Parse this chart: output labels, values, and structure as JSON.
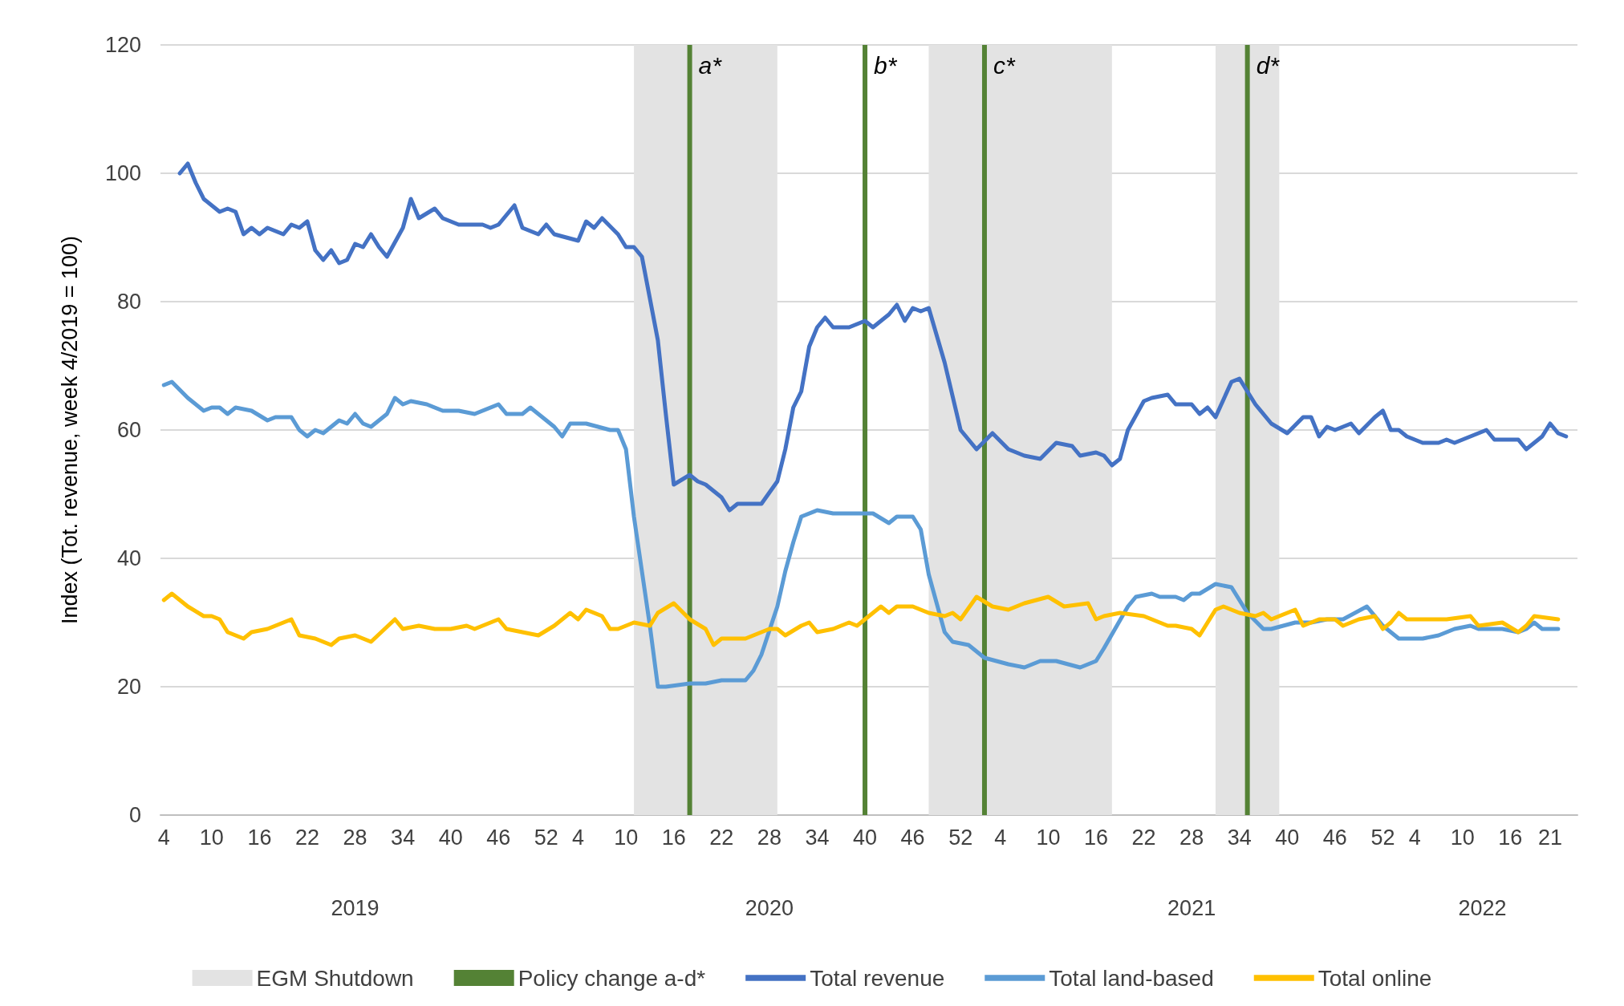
{
  "chart_data": {
    "type": "line",
    "ylabel": "Index (Tot. revenue, week 4/2019 = 100)",
    "xlim": [
      "2019-01-18",
      "2022-06-16"
    ],
    "xticks": [
      {
        "value": "2019-01-21",
        "label": "4"
      },
      {
        "value": "2019-03-04",
        "label": "10"
      },
      {
        "value": "2019-04-15",
        "label": "16"
      },
      {
        "value": "2019-05-27",
        "label": "22"
      },
      {
        "value": "2019-07-08",
        "label": "28"
      },
      {
        "value": "2019-08-19",
        "label": "34"
      },
      {
        "value": "2019-09-30",
        "label": "40"
      },
      {
        "value": "2019-11-11",
        "label": "46"
      },
      {
        "value": "2019-12-23",
        "label": "52"
      },
      {
        "value": "2020-01-20",
        "label": "4"
      },
      {
        "value": "2020-03-02",
        "label": "10"
      },
      {
        "value": "2020-04-13",
        "label": "16"
      },
      {
        "value": "2020-05-25",
        "label": "22"
      },
      {
        "value": "2020-07-06",
        "label": "28"
      },
      {
        "value": "2020-08-17",
        "label": "34"
      },
      {
        "value": "2020-09-28",
        "label": "40"
      },
      {
        "value": "2020-11-09",
        "label": "46"
      },
      {
        "value": "2020-12-21",
        "label": "52"
      },
      {
        "value": "2021-01-25",
        "label": "4"
      },
      {
        "value": "2021-03-08",
        "label": "10"
      },
      {
        "value": "2021-04-19",
        "label": "16"
      },
      {
        "value": "2021-05-31",
        "label": "22"
      },
      {
        "value": "2021-07-12",
        "label": "28"
      },
      {
        "value": "2021-08-23",
        "label": "34"
      },
      {
        "value": "2021-10-04",
        "label": "40"
      },
      {
        "value": "2021-11-15",
        "label": "46"
      },
      {
        "value": "2021-12-27",
        "label": "52"
      },
      {
        "value": "2022-01-24",
        "label": "4"
      },
      {
        "value": "2022-03-07",
        "label": "10"
      },
      {
        "value": "2022-04-18",
        "label": "16"
      },
      {
        "value": "2022-05-23",
        "label": "21"
      }
    ],
    "ylim": [
      0,
      120
    ],
    "yticks": [
      0,
      20,
      40,
      60,
      80,
      100,
      120
    ],
    "grid": "y",
    "legend": "bottom",
    "marker": "none",
    "line_style": "solid",
    "bands": [
      {
        "axis": "x",
        "from": "2020-03-09",
        "to": "2020-07-13",
        "label": "EGM Shutdown",
        "color": "#e3e3e3"
      },
      {
        "axis": "x",
        "from": "2020-11-23",
        "to": "2021-05-03",
        "color": "#e3e3e3"
      },
      {
        "axis": "x",
        "from": "2021-08-02",
        "to": "2021-09-27",
        "color": "#e3e3e3"
      }
    ],
    "annotations": [
      "2019",
      "2020",
      "2021",
      "2022"
    ],
    "series": [
      {
        "name": "Policy change a-d*",
        "type": "bar",
        "color": "#548235",
        "x": [
          "2020-04-27",
          "2020-09-28",
          "2021-01-11",
          "2021-08-30"
        ],
        "values": [
          120,
          120,
          120,
          120
        ],
        "value_labels": [
          "a*",
          "b*",
          "c*",
          "d*"
        ]
      },
      {
        "name": "Total revenue",
        "color": "#4472c4",
        "x": [
          "2019-02-04",
          "2019-02-11",
          "2019-02-18",
          "2019-02-25",
          "2019-03-11",
          "2019-03-18",
          "2019-03-25",
          "2019-04-01",
          "2019-04-08",
          "2019-04-15",
          "2019-04-22",
          "2019-05-06",
          "2019-05-13",
          "2019-05-20",
          "2019-05-27",
          "2019-06-03",
          "2019-06-10",
          "2019-06-17",
          "2019-06-24",
          "2019-07-01",
          "2019-07-08",
          "2019-07-15",
          "2019-07-22",
          "2019-07-29",
          "2019-08-05",
          "2019-08-19",
          "2019-08-26",
          "2019-09-02",
          "2019-09-16",
          "2019-09-23",
          "2019-10-07",
          "2019-10-28",
          "2019-11-04",
          "2019-11-11",
          "2019-11-25",
          "2019-12-02",
          "2019-12-16",
          "2019-12-23",
          "2019-12-30",
          "2020-01-20",
          "2020-01-27",
          "2020-02-03",
          "2020-02-10",
          "2020-02-24",
          "2020-03-02",
          "2020-03-09",
          "2020-03-16",
          "2020-03-30",
          "2020-04-06",
          "2020-04-13",
          "2020-04-27",
          "2020-05-04",
          "2020-05-11",
          "2020-05-25",
          "2020-06-01",
          "2020-06-08",
          "2020-06-15",
          "2020-06-29",
          "2020-07-13",
          "2020-07-20",
          "2020-07-27",
          "2020-08-03",
          "2020-08-10",
          "2020-08-17",
          "2020-08-24",
          "2020-08-31",
          "2020-09-14",
          "2020-09-28",
          "2020-10-05",
          "2020-10-19",
          "2020-10-26",
          "2020-11-02",
          "2020-11-09",
          "2020-11-16",
          "2020-11-23",
          "2020-12-07",
          "2020-12-21",
          "2021-01-04",
          "2021-01-18",
          "2021-02-01",
          "2021-02-15",
          "2021-03-01",
          "2021-03-15",
          "2021-03-29",
          "2021-04-05",
          "2021-04-19",
          "2021-04-26",
          "2021-05-03",
          "2021-05-10",
          "2021-05-17",
          "2021-05-31",
          "2021-06-07",
          "2021-06-21",
          "2021-06-28",
          "2021-07-12",
          "2021-07-19",
          "2021-07-26",
          "2021-08-02",
          "2021-08-16",
          "2021-08-23",
          "2021-09-06",
          "2021-09-20",
          "2021-10-04",
          "2021-10-18",
          "2021-10-25",
          "2021-11-01",
          "2021-11-08",
          "2021-11-15",
          "2021-11-29",
          "2021-12-06",
          "2021-12-20",
          "2021-12-27",
          "2022-01-03",
          "2022-01-10",
          "2022-01-17",
          "2022-01-31",
          "2022-02-14",
          "2022-02-21",
          "2022-02-28",
          "2022-03-21",
          "2022-03-28",
          "2022-04-04",
          "2022-04-25",
          "2022-05-02",
          "2022-05-16",
          "2022-05-23",
          "2022-05-30",
          "2022-06-06"
        ],
        "values": [
          100,
          101.5,
          98.5,
          96,
          94,
          94.5,
          94,
          90.5,
          91.5,
          90.5,
          91.5,
          90.5,
          92,
          91.5,
          92.5,
          88,
          86.5,
          88,
          86,
          86.5,
          89,
          88.5,
          90.5,
          88.5,
          87,
          91.5,
          96,
          93,
          94.5,
          93,
          92,
          92,
          91.5,
          92,
          95,
          91.5,
          90.5,
          92,
          90.5,
          89.5,
          92.5,
          91.5,
          93,
          90.5,
          88.5,
          88.5,
          87,
          74,
          62.5,
          51.5,
          53,
          52,
          51.5,
          49.5,
          47.5,
          48.5,
          48.5,
          48.5,
          52,
          57,
          63.5,
          66,
          73,
          76,
          77.5,
          76,
          76,
          77,
          76,
          78,
          79.5,
          77,
          79,
          78.5,
          79,
          70.5,
          60,
          57,
          59.5,
          57,
          56,
          55.5,
          58,
          57.5,
          56,
          56.5,
          56,
          54.5,
          55.5,
          60,
          64.5,
          65,
          65.5,
          64,
          64,
          62.5,
          63.5,
          62,
          67.5,
          68,
          64,
          61,
          59.5,
          62,
          62,
          59,
          60.5,
          60,
          61,
          59.5,
          62,
          63,
          60,
          60,
          59,
          58,
          58,
          58.5,
          58,
          59.5,
          60,
          58.5,
          58.5,
          57,
          59,
          61,
          59.5,
          59
        ]
      },
      {
        "name": "Total land-based",
        "color": "#5b9bd5",
        "x": [
          "2019-01-21",
          "2019-01-28",
          "2019-02-11",
          "2019-02-25",
          "2019-03-04",
          "2019-03-11",
          "2019-03-18",
          "2019-03-25",
          "2019-04-08",
          "2019-04-22",
          "2019-04-29",
          "2019-05-13",
          "2019-05-20",
          "2019-05-27",
          "2019-06-03",
          "2019-06-10",
          "2019-06-24",
          "2019-07-01",
          "2019-07-08",
          "2019-07-15",
          "2019-07-22",
          "2019-08-05",
          "2019-08-12",
          "2019-08-19",
          "2019-08-26",
          "2019-09-09",
          "2019-09-23",
          "2019-10-07",
          "2019-10-21",
          "2019-11-11",
          "2019-11-18",
          "2019-12-02",
          "2019-12-09",
          "2019-12-23",
          "2019-12-30",
          "2020-01-06",
          "2020-01-13",
          "2020-01-27",
          "2020-02-17",
          "2020-02-24",
          "2020-03-02",
          "2020-03-09",
          "2020-03-23",
          "2020-03-30",
          "2020-04-06",
          "2020-04-27",
          "2020-05-11",
          "2020-05-25",
          "2020-06-15",
          "2020-06-22",
          "2020-06-29",
          "2020-07-13",
          "2020-07-20",
          "2020-07-27",
          "2020-08-03",
          "2020-08-17",
          "2020-08-31",
          "2020-09-14",
          "2020-10-05",
          "2020-10-19",
          "2020-10-26",
          "2020-11-09",
          "2020-11-16",
          "2020-11-23",
          "2020-12-07",
          "2020-12-14",
          "2020-12-28",
          "2021-01-11",
          "2021-02-01",
          "2021-02-15",
          "2021-03-01",
          "2021-03-15",
          "2021-04-05",
          "2021-04-19",
          "2021-04-26",
          "2021-05-17",
          "2021-05-24",
          "2021-06-07",
          "2021-06-14",
          "2021-06-28",
          "2021-07-05",
          "2021-07-12",
          "2021-07-19",
          "2021-08-02",
          "2021-08-16",
          "2021-08-30",
          "2021-09-13",
          "2021-09-20",
          "2021-10-11",
          "2021-10-25",
          "2021-11-08",
          "2021-11-22",
          "2021-12-13",
          "2021-12-27",
          "2022-01-10",
          "2022-01-31",
          "2022-02-14",
          "2022-02-28",
          "2022-03-14",
          "2022-03-21",
          "2022-04-11",
          "2022-04-25",
          "2022-05-02",
          "2022-05-09",
          "2022-05-16",
          "2022-05-30"
        ],
        "values": [
          67,
          67.5,
          65,
          63,
          63.5,
          63.5,
          62.5,
          63.5,
          63,
          61.5,
          62,
          62,
          60,
          59,
          60,
          59.5,
          61.5,
          61,
          62.5,
          61,
          60.5,
          62.5,
          65,
          64,
          64.5,
          64,
          63,
          63,
          62.5,
          64,
          62.5,
          62.5,
          63.5,
          61.5,
          60.5,
          59,
          61,
          61,
          60,
          60,
          57,
          46.5,
          29.5,
          20,
          20,
          20.5,
          20.5,
          21,
          21,
          22.5,
          25,
          32.5,
          38,
          42.5,
          46.5,
          47.5,
          47,
          47,
          47,
          45.5,
          46.5,
          46.5,
          44.5,
          37.5,
          28.5,
          27,
          26.5,
          24.5,
          23.5,
          23,
          24,
          24,
          23,
          24,
          26,
          32.5,
          34,
          34.5,
          34,
          34,
          33.5,
          34.5,
          34.5,
          36,
          35.5,
          31.5,
          29,
          29,
          30,
          30,
          30.5,
          30.5,
          32.5,
          29.5,
          27.5,
          27.5,
          28,
          29,
          29.5,
          29,
          29,
          28.5,
          29,
          30,
          29,
          29
        ]
      },
      {
        "name": "Total online",
        "color": "#ffc000",
        "x": [
          "2019-01-21",
          "2019-01-28",
          "2019-02-11",
          "2019-02-25",
          "2019-03-04",
          "2019-03-11",
          "2019-03-18",
          "2019-04-01",
          "2019-04-08",
          "2019-04-22",
          "2019-04-29",
          "2019-05-13",
          "2019-05-20",
          "2019-06-03",
          "2019-06-17",
          "2019-06-24",
          "2019-07-08",
          "2019-07-22",
          "2019-08-12",
          "2019-08-19",
          "2019-09-02",
          "2019-09-16",
          "2019-09-30",
          "2019-10-14",
          "2019-10-21",
          "2019-11-11",
          "2019-11-18",
          "2019-12-02",
          "2019-12-16",
          "2019-12-30",
          "2020-01-13",
          "2020-01-20",
          "2020-01-27",
          "2020-02-10",
          "2020-02-17",
          "2020-02-24",
          "2020-03-09",
          "2020-03-23",
          "2020-03-30",
          "2020-04-13",
          "2020-04-27",
          "2020-05-11",
          "2020-05-18",
          "2020-05-25",
          "2020-06-15",
          "2020-07-06",
          "2020-07-13",
          "2020-07-20",
          "2020-08-03",
          "2020-08-10",
          "2020-08-17",
          "2020-08-31",
          "2020-09-14",
          "2020-09-21",
          "2020-09-28",
          "2020-10-12",
          "2020-10-19",
          "2020-10-26",
          "2020-11-09",
          "2020-11-23",
          "2020-12-07",
          "2020-12-14",
          "2020-12-21",
          "2021-01-04",
          "2021-01-18",
          "2021-02-01",
          "2021-02-15",
          "2021-03-08",
          "2021-03-22",
          "2021-04-12",
          "2021-04-19",
          "2021-04-26",
          "2021-05-10",
          "2021-05-31",
          "2021-06-07",
          "2021-06-21",
          "2021-06-28",
          "2021-07-12",
          "2021-07-19",
          "2021-08-02",
          "2021-08-09",
          "2021-08-23",
          "2021-09-06",
          "2021-09-13",
          "2021-09-20",
          "2021-10-04",
          "2021-10-11",
          "2021-10-18",
          "2021-11-01",
          "2021-11-15",
          "2021-11-22",
          "2021-12-06",
          "2021-12-20",
          "2021-12-27",
          "2022-01-03",
          "2022-01-10",
          "2022-01-17",
          "2022-02-07",
          "2022-02-21",
          "2022-03-14",
          "2022-03-21",
          "2022-04-11",
          "2022-04-25",
          "2022-05-02",
          "2022-05-09",
          "2022-05-30"
        ],
        "values": [
          33.5,
          34.5,
          32.5,
          31,
          31,
          30.5,
          28.5,
          27.5,
          28.5,
          29,
          29.5,
          30.5,
          28,
          27.5,
          26.5,
          27.5,
          28,
          27,
          30.5,
          29,
          29.5,
          29,
          29,
          29.5,
          29,
          30.5,
          29,
          28.5,
          28,
          29.5,
          31.5,
          30.5,
          32,
          31,
          29,
          29,
          30,
          29.5,
          31.5,
          33,
          30.5,
          29,
          26.5,
          27.5,
          27.5,
          29,
          29,
          28,
          29.5,
          30,
          28.5,
          29,
          30,
          29.5,
          30.5,
          32.5,
          31.5,
          32.5,
          32.5,
          31.5,
          31,
          31.5,
          30.5,
          34,
          32.5,
          32,
          33,
          34,
          32.5,
          33,
          30.5,
          31,
          31.5,
          31,
          30.5,
          29.5,
          29.5,
          29,
          28,
          32,
          32.5,
          31.5,
          31,
          31.5,
          30.5,
          31.5,
          32,
          29.5,
          30.5,
          30.5,
          29.5,
          30.5,
          31,
          29,
          30,
          31.5,
          30.5,
          30.5,
          30.5,
          31,
          29.5,
          30,
          28.5,
          29.5,
          31,
          30.5
        ]
      }
    ]
  }
}
